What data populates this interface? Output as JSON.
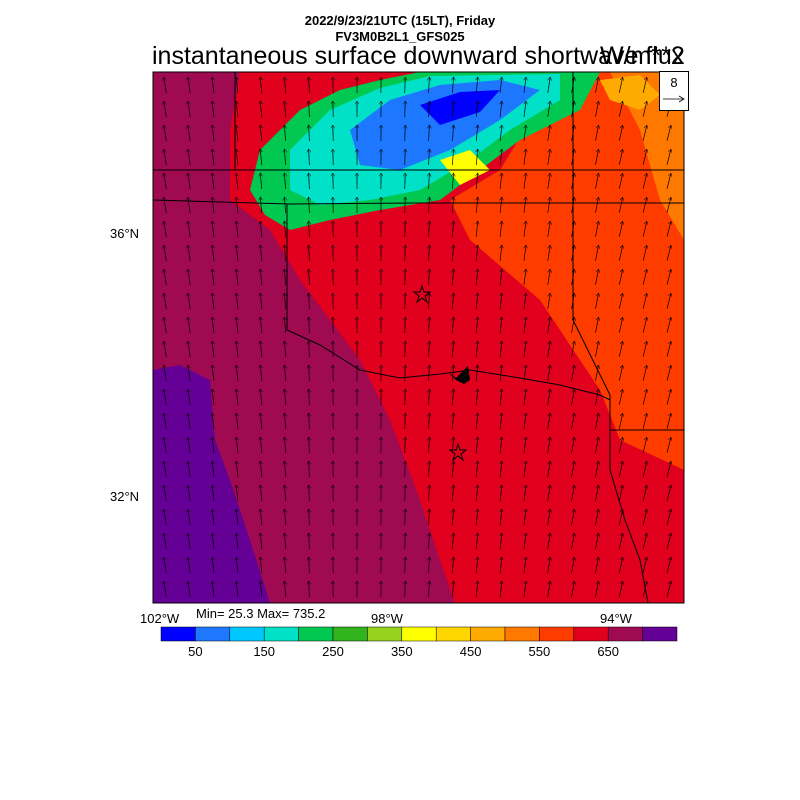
{
  "header": {
    "line1": "2022/9/23/21UTC (15LT), Friday",
    "line2": "FV3M0B2L1_GFS025",
    "title": "instantaneous surface downward shortwave flux",
    "units": "W/m**2"
  },
  "map": {
    "lat_labels": [
      "36°N",
      "32°N"
    ],
    "lon_labels": [
      "102°W",
      "98°W",
      "94°W"
    ],
    "min_max": "Min= 25.3 Max= 735.2",
    "reference_vector": "8",
    "markers": [
      "star",
      "star"
    ]
  },
  "colorbar": {
    "colors": [
      "#0000ff",
      "#1e78ff",
      "#00c8ff",
      "#00e1c8",
      "#00c850",
      "#32b41e",
      "#96d21e",
      "#ffff00",
      "#ffd700",
      "#ffaa00",
      "#ff7800",
      "#ff3c00",
      "#e1001e",
      "#a00a50",
      "#640096"
    ],
    "tick_labels": [
      "50",
      "150",
      "250",
      "350",
      "450",
      "550",
      "650"
    ]
  }
}
